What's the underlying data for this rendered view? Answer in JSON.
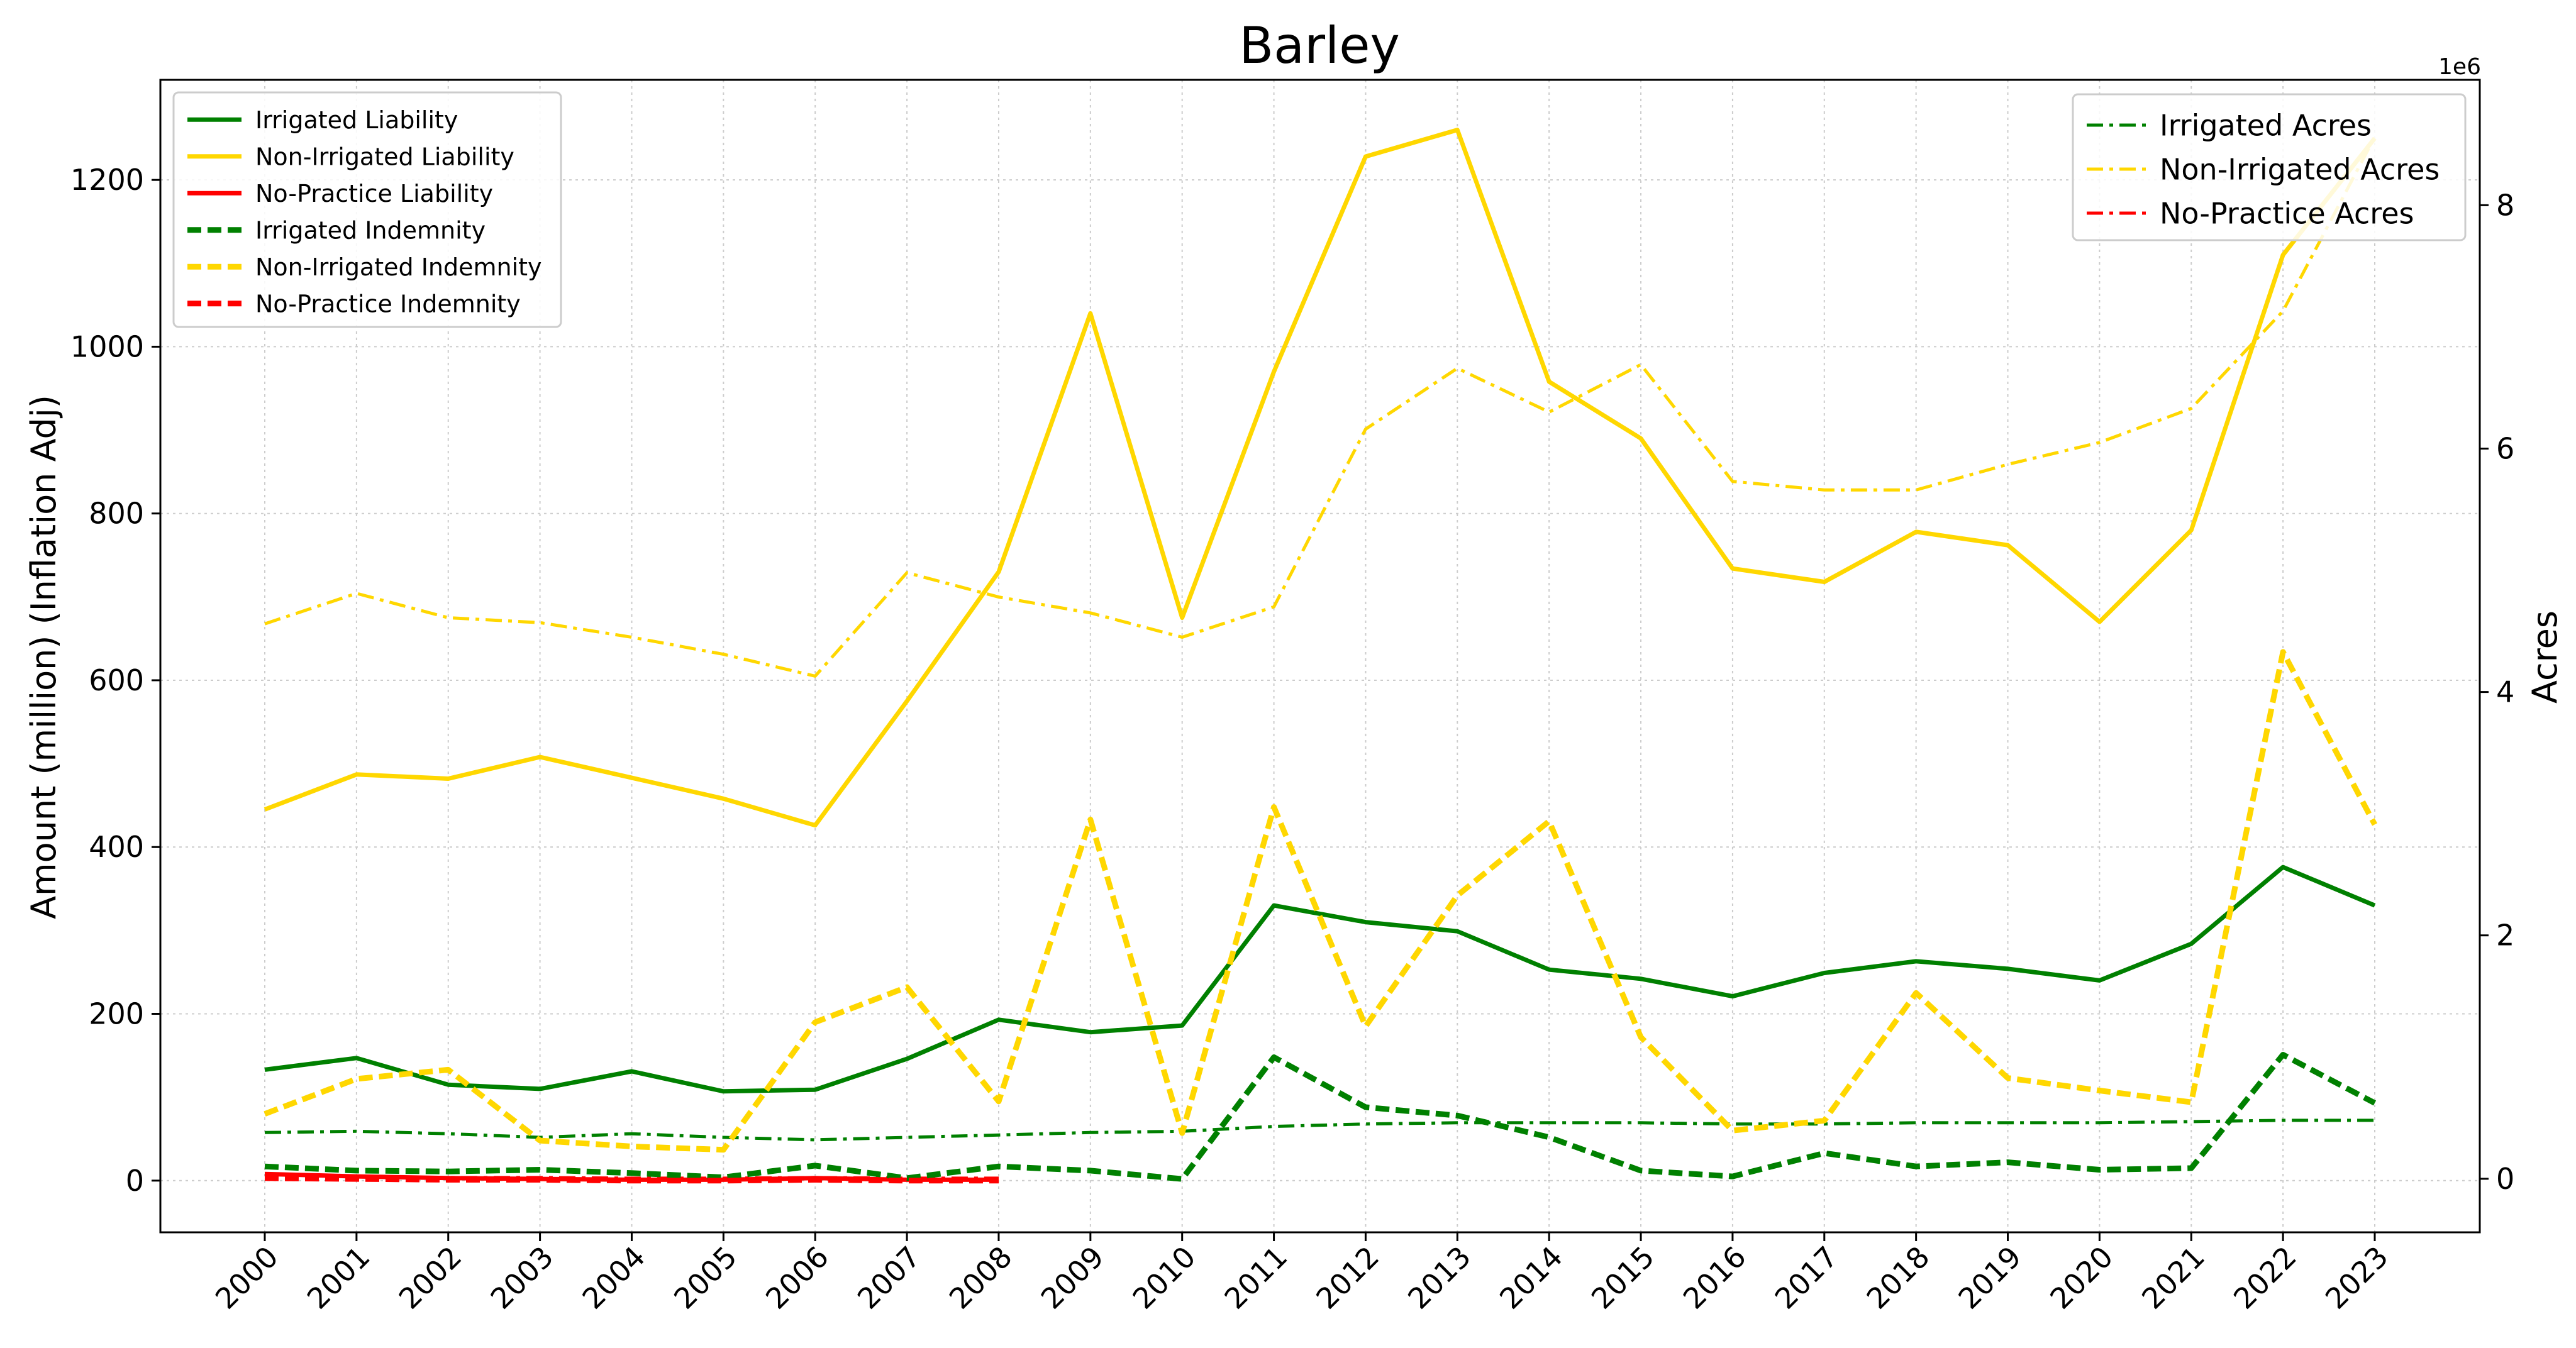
{
  "chart_data": {
    "type": "line",
    "title": "Barley",
    "xlabel": "",
    "ylabel": "Amount (million) (Inflation Adj)",
    "y2label": "Acres",
    "y2_offset_label": "1e6",
    "categories": [
      "2000",
      "2001",
      "2002",
      "2003",
      "2004",
      "2005",
      "2006",
      "2007",
      "2008",
      "2009",
      "2010",
      "2011",
      "2012",
      "2013",
      "2014",
      "2015",
      "2016",
      "2017",
      "2018",
      "2019",
      "2020",
      "2021",
      "2022",
      "2023"
    ],
    "ylim": [
      -62,
      1320
    ],
    "yticks": [
      0,
      200,
      400,
      600,
      800,
      1000,
      1200
    ],
    "y2lim": [
      -440000,
      9030000
    ],
    "y2ticks": [
      0,
      2000000,
      4000000,
      6000000,
      8000000
    ],
    "y2ticklabels": [
      "0",
      "2",
      "4",
      "6",
      "8"
    ],
    "grid": true,
    "series": [
      {
        "name": "Irrigated Liability",
        "axis": "left",
        "style": "solid",
        "color": "#008000",
        "values": [
          133,
          147,
          115,
          110,
          131,
          107,
          109,
          146,
          193,
          178,
          186,
          330,
          310,
          299,
          253,
          242,
          221,
          249,
          263,
          254,
          240,
          284,
          376,
          330
        ]
      },
      {
        "name": "Non-Irrigated Liability",
        "axis": "left",
        "style": "solid",
        "color": "#FFD700",
        "values": [
          445,
          487,
          482,
          508,
          483,
          458,
          426,
          575,
          730,
          1040,
          675,
          970,
          1228,
          1260,
          958,
          890,
          734,
          718,
          778,
          762,
          670,
          780,
          1110,
          1250
        ]
      },
      {
        "name": "No-Practice Liability",
        "axis": "left",
        "style": "solid",
        "color": "#FF0000",
        "values": [
          8,
          5,
          3,
          2,
          1,
          1,
          3,
          1,
          1,
          null,
          null,
          null,
          null,
          null,
          null,
          null,
          null,
          null,
          null,
          null,
          null,
          null,
          null,
          null
        ]
      },
      {
        "name": "Irrigated Indemnity",
        "axis": "left",
        "style": "dashed",
        "color": "#008000",
        "values": [
          17,
          12,
          11,
          13,
          9,
          4,
          18,
          3,
          17,
          12,
          2,
          148,
          88,
          78,
          52,
          12,
          5,
          33,
          17,
          22,
          13,
          15,
          151,
          93
        ]
      },
      {
        "name": "Non-Irrigated Indemnity",
        "axis": "left",
        "style": "dashed",
        "color": "#FFD700",
        "values": [
          80,
          122,
          133,
          48,
          41,
          37,
          190,
          232,
          95,
          433,
          57,
          448,
          185,
          342,
          431,
          172,
          60,
          72,
          225,
          123,
          108,
          94,
          634,
          427
        ]
      },
      {
        "name": "No-Practice Indemnity",
        "axis": "left",
        "style": "dashed",
        "color": "#FF0000",
        "values": [
          3,
          2,
          1,
          1,
          0,
          0,
          1,
          0,
          0,
          null,
          null,
          null,
          null,
          null,
          null,
          null,
          null,
          null,
          null,
          null,
          null,
          null,
          null,
          null
        ]
      },
      {
        "name": "Irrigated Acres",
        "axis": "right",
        "style": "dashdot",
        "color": "#008000",
        "values": [
          380000,
          390000,
          370000,
          340000,
          370000,
          340000,
          320000,
          340000,
          360000,
          380000,
          390000,
          430000,
          450000,
          460000,
          460000,
          460000,
          450000,
          450000,
          460000,
          460000,
          460000,
          470000,
          480000,
          480000
        ]
      },
      {
        "name": "Non-Irrigated Acres",
        "axis": "right",
        "style": "dashdot",
        "color": "#FFD700",
        "values": [
          4560000,
          4810000,
          4610000,
          4570000,
          4450000,
          4310000,
          4130000,
          4980000,
          4780000,
          4650000,
          4450000,
          4700000,
          6160000,
          6660000,
          6300000,
          6690000,
          5730000,
          5660000,
          5660000,
          5870000,
          6050000,
          6330000,
          7130000,
          8560000
        ]
      },
      {
        "name": "No-Practice Acres",
        "axis": "right",
        "style": "dashdot",
        "color": "#FF0000",
        "values": [
          40000,
          20000,
          10000,
          10000,
          5000,
          5000,
          10000,
          5000,
          5000,
          null,
          null,
          null,
          null,
          null,
          null,
          null,
          null,
          null,
          null,
          null,
          null,
          null,
          null,
          null
        ]
      }
    ],
    "legend_left_position": "upper-left",
    "legend_right_position": "upper-right"
  }
}
